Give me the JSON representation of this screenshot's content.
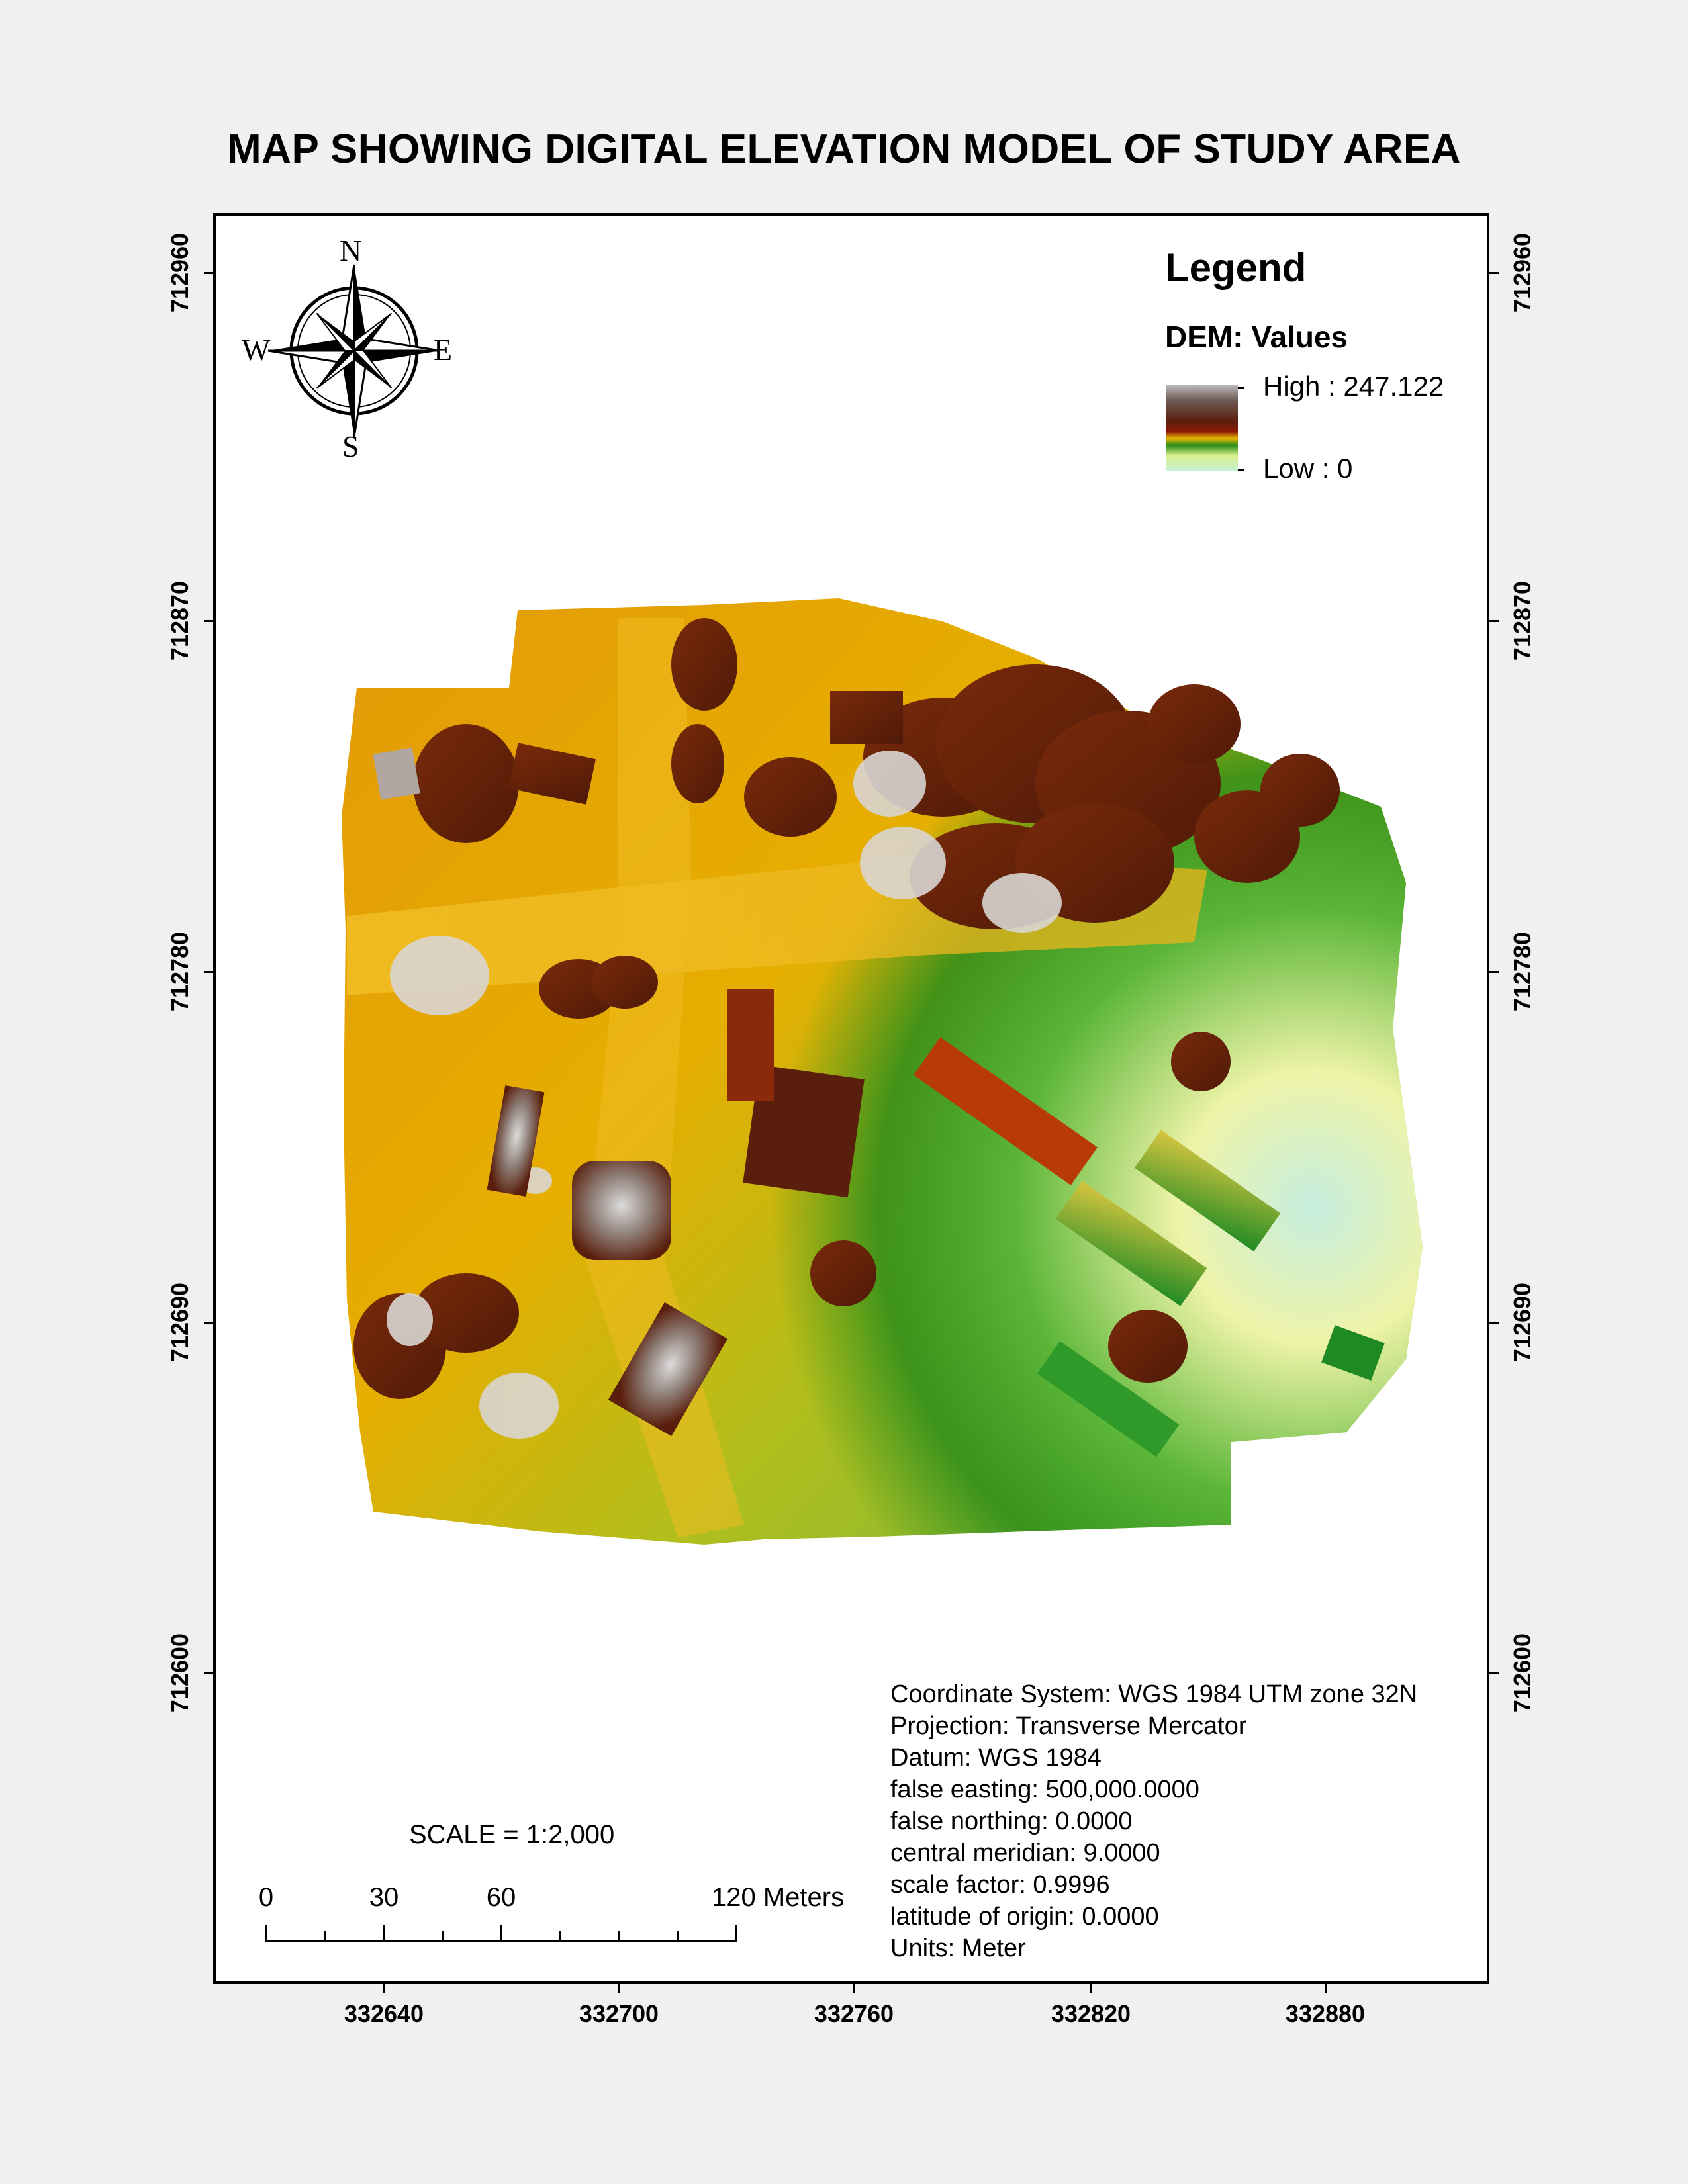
{
  "title": "MAP SHOWING DIGITAL ELEVATION MODEL OF STUDY AREA",
  "north_arrow": {
    "n": "N",
    "s": "S",
    "e": "E",
    "w": "W",
    "icon": "compass-rose-icon"
  },
  "legend": {
    "title": "Legend",
    "field": "DEM: Values",
    "high": "High : 247.122",
    "low": "Low : 0",
    "high_value": 247.122,
    "low_value": 0
  },
  "grid": {
    "y_labels": [
      "712960",
      "712870",
      "712780",
      "712690",
      "712600"
    ],
    "x_labels": [
      "332640",
      "332700",
      "332760",
      "332820",
      "332880"
    ]
  },
  "scale": {
    "text": "SCALE = 1:2,000",
    "ratio": "1:2,000",
    "labels": [
      "0",
      "30",
      "60",
      "120 Meters"
    ]
  },
  "projection": {
    "lines": [
      "Coordinate System: WGS 1984 UTM zone 32N",
      "Projection: Transverse Mercator",
      "Datum: WGS 1984",
      "false easting: 500,000.0000",
      "false northing: 0.0000",
      "central meridian: 9.0000",
      "scale factor: 0.9996",
      "latitude of origin: 0.0000",
      "Units: Meter"
    ]
  },
  "colors": {
    "high": "#5a1f0c",
    "mid": "#e8a000",
    "low": "#c6f0d8",
    "vegetation": "#2a8c1a",
    "roof_gray": "#b9b9b9"
  }
}
